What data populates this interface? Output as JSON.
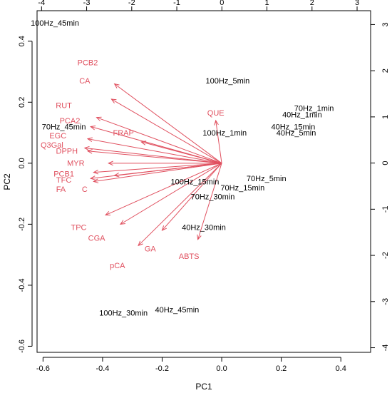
{
  "chart_data": {
    "type": "scatter",
    "title": "",
    "xlabel": "PC1",
    "ylabel": "PC2",
    "xlim": [
      -0.62,
      0.5
    ],
    "ylim": [
      -0.62,
      0.5
    ],
    "xticks": [
      -0.6,
      -0.4,
      -0.2,
      0.0,
      0.2,
      0.4
    ],
    "xtick_labels": [
      "-0.6",
      "-0.4",
      "-0.2",
      "0.0",
      "0.2",
      "0.4"
    ],
    "yticks": [
      -0.6,
      -0.4,
      -0.2,
      0.0,
      0.2,
      0.4
    ],
    "ytick_labels": [
      "-0.6",
      "-0.4",
      "-0.2",
      "0.0",
      "0.2",
      "0.4"
    ],
    "top_axis": {
      "xlim": [
        -4.1,
        3.3
      ],
      "ticks": [
        -4,
        -3,
        -2,
        -1,
        0,
        1,
        2,
        3
      ],
      "tick_labels": [
        "-4",
        "-3",
        "-2",
        "-1",
        "0",
        "1",
        "2",
        "3"
      ]
    },
    "right_axis": {
      "ylim": [
        -4.1,
        3.3
      ],
      "ticks": [
        -4,
        -3,
        -2,
        -1,
        0,
        1,
        2,
        3
      ],
      "tick_labels": [
        "-4",
        "-3",
        "-2",
        "-1",
        "0",
        "1",
        "2",
        "3"
      ]
    },
    "observations": [
      {
        "label": "100Hz_45min",
        "x": -0.56,
        "y": 0.46
      },
      {
        "label": "100Hz_5min",
        "x": 0.02,
        "y": 0.27
      },
      {
        "label": "70Hz_1min",
        "x": 0.31,
        "y": 0.18
      },
      {
        "label": "40Hz_1min",
        "x": 0.27,
        "y": 0.16
      },
      {
        "label": "40Hz_15min",
        "x": 0.24,
        "y": 0.12
      },
      {
        "label": "40Hz_5min",
        "x": 0.25,
        "y": 0.1
      },
      {
        "label": "100Hz_1min",
        "x": 0.01,
        "y": 0.1
      },
      {
        "label": "70Hz_45min",
        "x": -0.53,
        "y": 0.12
      },
      {
        "label": "70Hz_5min",
        "x": 0.15,
        "y": -0.05
      },
      {
        "label": "100Hz_15min",
        "x": -0.09,
        "y": -0.06
      },
      {
        "label": "70Hz_15min",
        "x": 0.07,
        "y": -0.08
      },
      {
        "label": "70Hz_30min",
        "x": -0.03,
        "y": -0.11
      },
      {
        "label": "40Hz_30min",
        "x": -0.06,
        "y": -0.21
      },
      {
        "label": "100Hz_30min",
        "x": -0.33,
        "y": -0.49
      },
      {
        "label": "40Hz_45min",
        "x": -0.15,
        "y": -0.48
      }
    ],
    "loadings": [
      {
        "name": "PCB2",
        "x": -0.36,
        "y": 0.26,
        "label_x": -0.45,
        "label_y": 0.33
      },
      {
        "name": "CA",
        "x": -0.37,
        "y": 0.21,
        "label_x": -0.46,
        "label_y": 0.27
      },
      {
        "name": "RUT",
        "x": -0.42,
        "y": 0.15,
        "label_x": -0.53,
        "label_y": 0.19
      },
      {
        "name": "PCA2",
        "x": -0.44,
        "y": 0.12,
        "label_x": -0.51,
        "label_y": 0.14
      },
      {
        "name": "FRAP",
        "x": -0.27,
        "y": 0.07,
        "label_x": -0.33,
        "label_y": 0.1
      },
      {
        "name": "EGC",
        "x": -0.45,
        "y": 0.08,
        "label_x": -0.55,
        "label_y": 0.09
      },
      {
        "name": "Q3Gal",
        "x": -0.46,
        "y": 0.05,
        "label_x": -0.57,
        "label_y": 0.06
      },
      {
        "name": "DPPH",
        "x": -0.45,
        "y": 0.04,
        "label_x": -0.52,
        "label_y": 0.04
      },
      {
        "name": "MYR",
        "x": -0.38,
        "y": 0.0,
        "label_x": -0.49,
        "label_y": 0.0
      },
      {
        "name": "PCB1",
        "x": -0.43,
        "y": -0.03,
        "label_x": -0.53,
        "label_y": -0.035
      },
      {
        "name": "TFC",
        "x": -0.44,
        "y": -0.05,
        "label_x": -0.53,
        "label_y": -0.055
      },
      {
        "name": "FA",
        "x": -0.43,
        "y": -0.06,
        "label_x": -0.54,
        "label_y": -0.085
      },
      {
        "name": "C",
        "x": -0.36,
        "y": -0.04,
        "label_x": -0.46,
        "label_y": -0.085
      },
      {
        "name": "TPC",
        "x": -0.39,
        "y": -0.17,
        "label_x": -0.48,
        "label_y": -0.21
      },
      {
        "name": "CGA",
        "x": -0.34,
        "y": -0.2,
        "label_x": -0.42,
        "label_y": -0.245
      },
      {
        "name": "GA",
        "x": -0.28,
        "y": -0.27,
        "label_x": -0.24,
        "label_y": -0.28
      },
      {
        "name": "pCA",
        "x": -0.2,
        "y": -0.22,
        "label_x": -0.35,
        "label_y": -0.335
      },
      {
        "name": "ABTS",
        "x": -0.08,
        "y": -0.25,
        "label_x": -0.11,
        "label_y": -0.305
      },
      {
        "name": "QUE",
        "x": -0.02,
        "y": 0.14,
        "label_x": -0.02,
        "label_y": 0.165
      }
    ],
    "colors": {
      "observations": "#000000",
      "loadings": "#e0505f",
      "axis": "#000000"
    },
    "grid": false,
    "legend": "none"
  }
}
